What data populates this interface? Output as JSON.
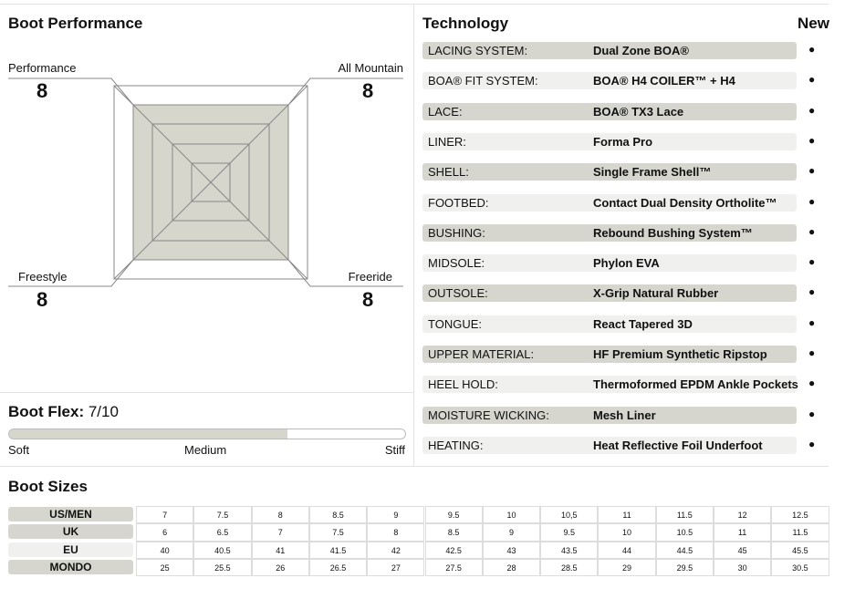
{
  "performance": {
    "title": "Boot Performance",
    "ratings": [
      {
        "label": "Performance",
        "value": "8"
      },
      {
        "label": "All Mountain",
        "value": "8"
      },
      {
        "label": "Freestyle",
        "value": "8"
      },
      {
        "label": "Freeride",
        "value": "8"
      }
    ]
  },
  "flex": {
    "label": "Boot Flex:",
    "value": "7/10",
    "scale": [
      "Soft",
      "Medium",
      "Stiff"
    ]
  },
  "technology": {
    "title": "Technology",
    "new_header": "New",
    "rows": [
      {
        "label": "LACING SYSTEM:",
        "value": "Dual Zone BOA®",
        "new": "●"
      },
      {
        "label": "BOA® FIT SYSTEM:",
        "value": "BOA® H4 COILER™ + H4",
        "new": "●"
      },
      {
        "label": "LACE:",
        "value": "BOA® TX3 Lace",
        "new": "●"
      },
      {
        "label": "LINER:",
        "value": "Forma Pro",
        "new": "●"
      },
      {
        "label": "SHELL:",
        "value": "Single Frame Shell™",
        "new": "●"
      },
      {
        "label": "FOOTBED:",
        "value": "Contact Dual Density Ortholite™",
        "new": "●"
      },
      {
        "label": "BUSHING:",
        "value": "Rebound Bushing System™",
        "new": "●"
      },
      {
        "label": "MIDSOLE:",
        "value": "Phylon EVA",
        "new": "●"
      },
      {
        "label": "OUTSOLE:",
        "value": "X-Grip Natural Rubber",
        "new": "●"
      },
      {
        "label": "TONGUE:",
        "value": "React Tapered 3D",
        "new": "●"
      },
      {
        "label": "UPPER MATERIAL:",
        "value": "HF Premium Synthetic Ripstop",
        "new": "●"
      },
      {
        "label": "HEEL HOLD:",
        "value": "Thermoformed EPDM Ankle Pockets",
        "new": "●"
      },
      {
        "label": "MOISTURE WICKING:",
        "value": "Mesh Liner",
        "new": "●"
      },
      {
        "label": "HEATING:",
        "value": "Heat Reflective Foil Underfoot",
        "new": "●"
      }
    ]
  },
  "sizes": {
    "title": "Boot Sizes",
    "rows": [
      {
        "label": "US/MEN",
        "values": [
          "7",
          "7.5",
          "8",
          "8.5",
          "9",
          "9.5",
          "10",
          "10,5",
          "11",
          "11.5",
          "12",
          "12.5"
        ]
      },
      {
        "label": "UK",
        "values": [
          "6",
          "6.5",
          "7",
          "7.5",
          "8",
          "8.5",
          "9",
          "9.5",
          "10",
          "10.5",
          "11",
          "11.5"
        ]
      },
      {
        "label": "EU",
        "values": [
          "40",
          "40.5",
          "41",
          "41.5",
          "42",
          "42.5",
          "43",
          "43.5",
          "44",
          "44.5",
          "45",
          "45.5"
        ]
      },
      {
        "label": "MONDO",
        "values": [
          "25",
          "25.5",
          "26",
          "26.5",
          "27",
          "27.5",
          "28",
          "28.5",
          "29",
          "29.5",
          "30",
          "30.5"
        ]
      }
    ]
  }
}
